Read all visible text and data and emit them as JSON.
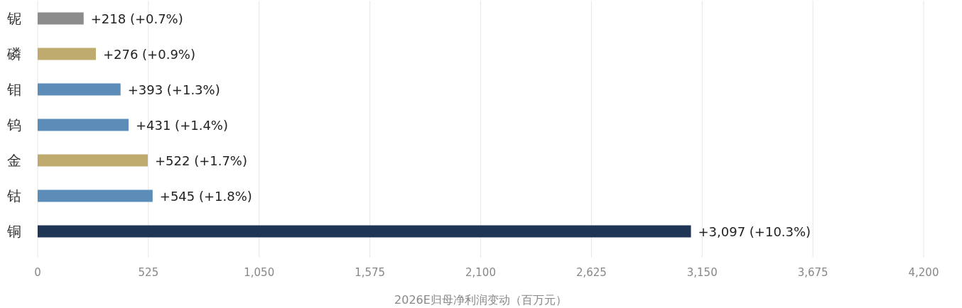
{
  "chart_data": {
    "type": "bar",
    "orientation": "horizontal",
    "categories": [
      "铌",
      "磷",
      "钼",
      "钨",
      "金",
      "钴",
      "铜"
    ],
    "values": [
      218,
      276,
      393,
      431,
      522,
      545,
      3097
    ],
    "colors": [
      "#8c8c8c",
      "#bfab6e",
      "#5b8db8",
      "#5b8db8",
      "#bfab6e",
      "#5b8db8",
      "#1f3556"
    ],
    "value_labels": [
      "+218 (+0.7%)",
      "+276 (+0.9%)",
      "+393 (+1.3%)",
      "+431 (+1.4%)",
      "+522 (+1.7%)",
      "+545 (+1.8%)",
      "+3,097 (+10.3%)"
    ],
    "xlim": [
      0,
      4200
    ],
    "xticks": [
      0,
      525,
      {
        "value": 1050,
        "label": "1,050"
      },
      {
        "value": 1575,
        "label": "1,575"
      },
      {
        "value": 2100,
        "label": "2,100"
      },
      {
        "value": 2625,
        "label": "2,625"
      },
      {
        "value": 3150,
        "label": "3,150"
      },
      {
        "value": 3675,
        "label": "3,675"
      },
      {
        "value": 4200,
        "label": "4,200"
      }
    ],
    "xlabel": "2026E归母净利润变动（百万元）",
    "grid": "x"
  }
}
